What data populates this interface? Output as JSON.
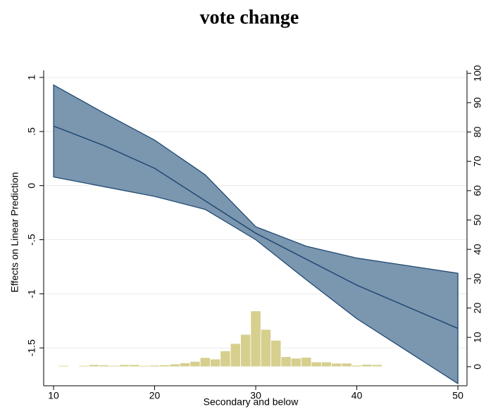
{
  "chart_data": {
    "type": "margins",
    "title": "vote change",
    "x_label": "Secondary and below",
    "y_label": "Effects on Linear Prediction",
    "x": [
      10,
      15,
      20,
      25,
      30,
      35,
      40,
      45,
      50
    ],
    "fit": [
      0.55,
      0.37,
      0.16,
      -0.14,
      -0.44,
      -0.68,
      -0.92,
      -1.12,
      -1.32
    ],
    "ci_upper": [
      0.93,
      0.67,
      0.42,
      0.1,
      -0.38,
      -0.56,
      -0.67,
      -0.74,
      -0.81
    ],
    "ci_lower": [
      0.08,
      -0.01,
      -0.1,
      -0.22,
      -0.5,
      -0.87,
      -1.23,
      -1.53,
      -1.83
    ],
    "band_color": "#7b96af",
    "line_color": "#1f4a73",
    "histogram": {
      "bins": [
        10.5,
        11.5,
        12.5,
        13.5,
        14.5,
        15.5,
        16.5,
        17.5,
        18.5,
        19.5,
        20.5,
        21.5,
        22.5,
        23.5,
        24.5,
        25.5,
        26.5,
        27.5,
        28.5,
        29.5,
        30.5,
        31.5,
        32.5,
        33.5,
        34.5,
        35.5,
        36.5,
        37.5,
        38.5,
        39.5,
        40.5,
        41.5,
        42.5
      ],
      "counts": [
        0.4,
        0,
        0.4,
        0.7,
        0.6,
        0.4,
        0.7,
        0.7,
        0.4,
        0.5,
        0.6,
        0.9,
        1.3,
        1.8,
        3.1,
        2.6,
        5.4,
        7.9,
        11,
        19,
        12.7,
        9,
        3.4,
        2.9,
        3.2,
        1.6,
        1.6,
        1.2,
        1.2,
        0.5,
        0.8,
        0.7
      ],
      "color": "#d6cf8e",
      "axis": "y2"
    },
    "xlim": [
      9.02,
      50.9
    ],
    "xticks": [
      10,
      20,
      30,
      40,
      50
    ],
    "ylim": [
      -1.85,
      1.065
    ],
    "yticks": [
      {
        "value": 1,
        "label": "1"
      },
      {
        "value": 0.5,
        "label": ".5"
      },
      0,
      {
        "value": -0.5,
        "label": "-.5"
      },
      -1,
      {
        "value": -1.5,
        "label": "-1.5"
      }
    ],
    "y2lim": [
      -6.5,
      101
    ],
    "y2ticks": [
      0,
      10,
      20,
      30,
      40,
      50,
      60,
      70,
      80,
      90,
      100
    ],
    "grid": true
  }
}
